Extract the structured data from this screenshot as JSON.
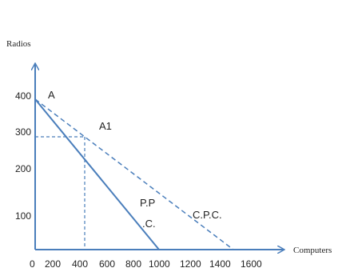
{
  "chart_data": {
    "type": "line",
    "title": "",
    "xlabel": "Computers",
    "ylabel": "Radios",
    "xlim": [
      0,
      1600
    ],
    "ylim": [
      0,
      400
    ],
    "x_ticks": [
      "0",
      "200",
      "400",
      "600",
      "800",
      "1000",
      "1200",
      "1400",
      "1600"
    ],
    "y_ticks": [
      "400",
      "300",
      "200",
      "100"
    ],
    "series": [
      {
        "name": "P.P C.",
        "style": "solid",
        "color": "#4a7ebb",
        "points": [
          [
            0,
            400
          ],
          [
            1000,
            0
          ]
        ]
      },
      {
        "name": "C.P.C.",
        "style": "dashed",
        "color": "#4a7ebb",
        "points": [
          [
            0,
            400
          ],
          [
            1600,
            0
          ]
        ]
      }
    ],
    "guides": {
      "x": 400,
      "y": 300,
      "style": "dashed"
    },
    "annotations": {
      "A": "A",
      "A1": "A1",
      "ppc_line1": "P.P",
      "ppc_line2": ".C.",
      "cpc": "C.P.C."
    },
    "grid": false
  }
}
